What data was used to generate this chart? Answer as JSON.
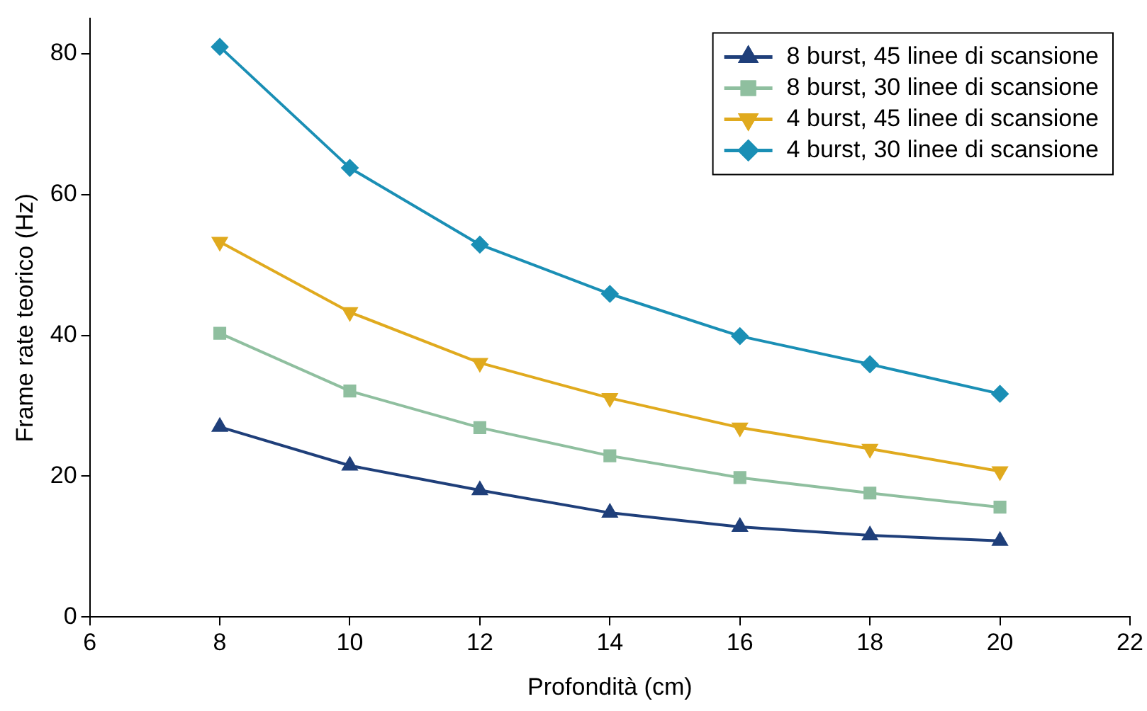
{
  "chart_data": {
    "type": "line",
    "xlabel": "Profondità (cm)",
    "ylabel": "Frame rate teorico (Hz)",
    "x": [
      8,
      10,
      12,
      14,
      16,
      18,
      20
    ],
    "series": [
      {
        "name": "8 burst, 45 linee di scansione",
        "color": "#1f3f7a",
        "marker": "triangle",
        "values": [
          27,
          21.5,
          18,
          14.8,
          12.8,
          11.6,
          10.8
        ]
      },
      {
        "name": "8 burst, 30 linee di scansione",
        "color": "#8fbf9f",
        "marker": "square",
        "values": [
          40.3,
          32.1,
          26.9,
          22.9,
          19.8,
          17.6,
          15.6
        ]
      },
      {
        "name": "4 burst, 45 linee di scansione",
        "color": "#e0aa1e",
        "marker": "triangle-down",
        "values": [
          53.3,
          43.3,
          36.1,
          31.1,
          26.9,
          23.9,
          20.7
        ]
      },
      {
        "name": "4 burst, 30 linee di scansione",
        "color": "#1a8fb5",
        "marker": "diamond",
        "values": [
          81,
          63.8,
          52.9,
          45.9,
          39.9,
          35.9,
          31.7
        ]
      }
    ],
    "xlim": [
      6,
      22
    ],
    "xticks": [
      6,
      8,
      10,
      12,
      14,
      16,
      18,
      20,
      22
    ],
    "ylim": [
      0,
      85
    ],
    "yticks": [
      0,
      20,
      40,
      60,
      80
    ],
    "grid": false,
    "legend": "top right"
  }
}
